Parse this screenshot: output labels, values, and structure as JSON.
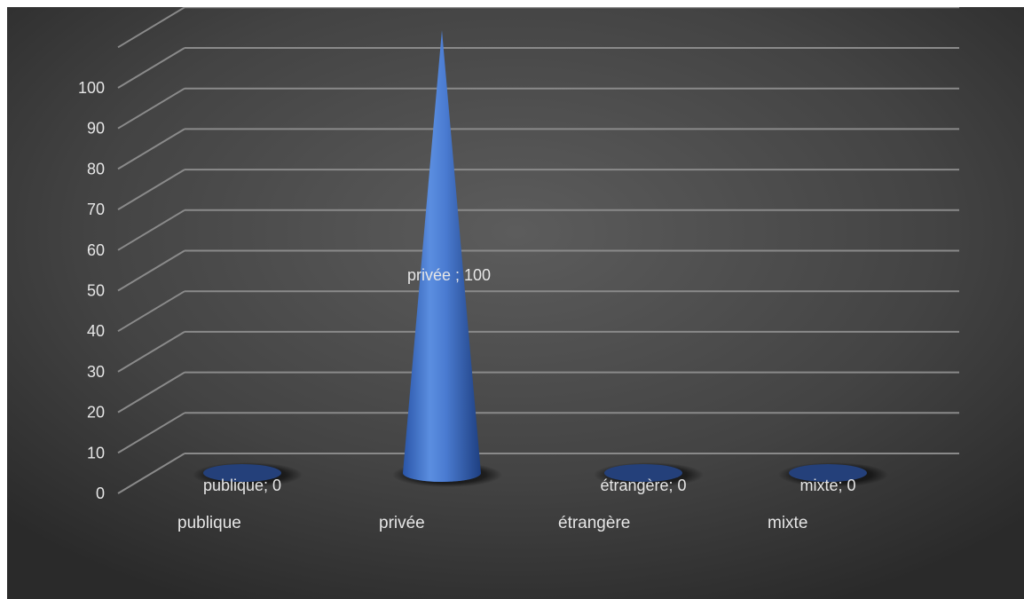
{
  "chart_data": {
    "type": "bar",
    "style": "3d-cone",
    "categories": [
      "publique",
      "privée",
      "étrangère",
      "mixte"
    ],
    "values": [
      0,
      100,
      0,
      0
    ],
    "data_labels": [
      "publique; 0",
      "privée ; 100",
      "étrangère; 0",
      "mixte; 0"
    ],
    "title": "",
    "xlabel": "",
    "ylabel": "",
    "ylim": [
      0,
      110
    ],
    "y_ticks": [
      "0",
      "10",
      "20",
      "30",
      "40",
      "50",
      "60",
      "70",
      "80",
      "90",
      "100"
    ],
    "grid": true,
    "legend": "none",
    "colors": {
      "cone": "#4472c4",
      "background": "#4a4a4a",
      "gridline": "#8a8a8a",
      "text": "#e6e6e6"
    }
  }
}
